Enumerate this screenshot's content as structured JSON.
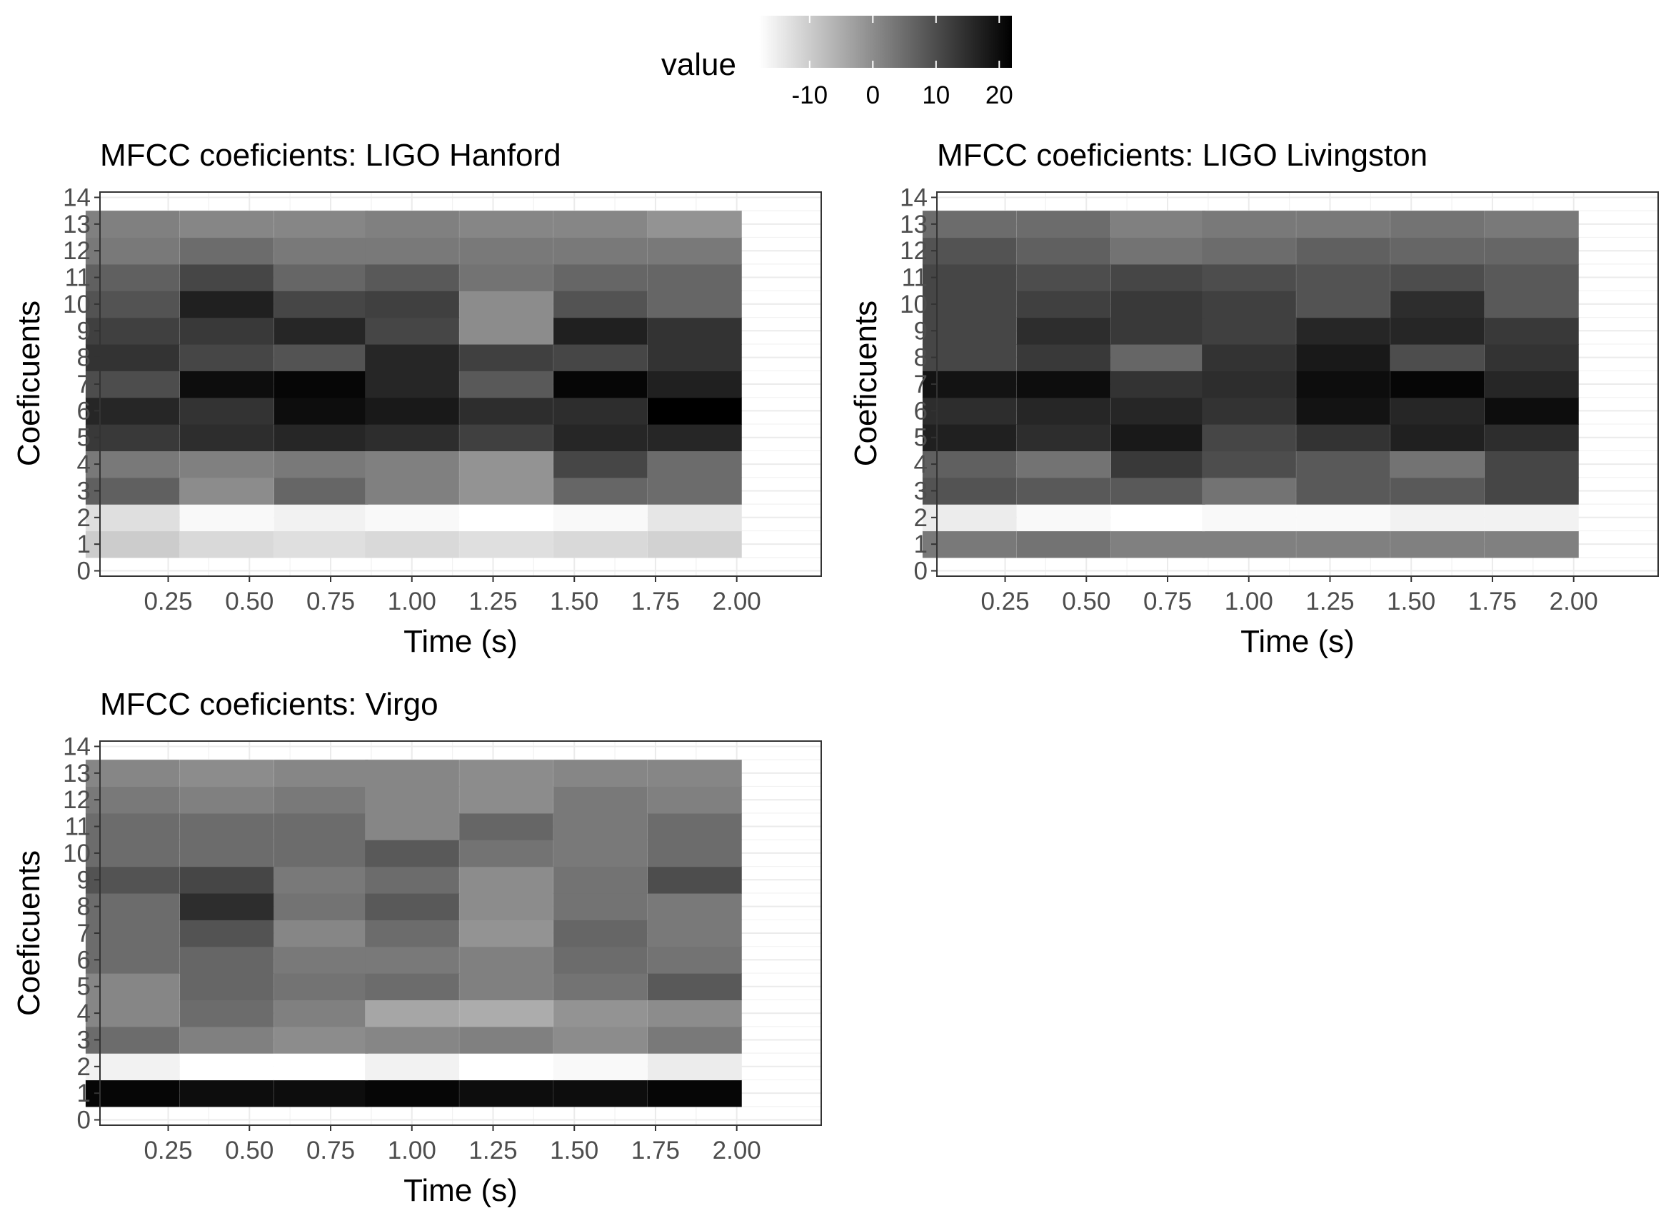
{
  "legend": {
    "title": "value",
    "ticks": [
      -10,
      0,
      10,
      20
    ],
    "tick_labels": [
      "-10",
      "0",
      "10",
      "20"
    ],
    "range": [
      -18,
      22
    ],
    "color_low": "#ffffff",
    "color_high": "#000000"
  },
  "chart_data": [
    {
      "type": "heatmap",
      "title": "MFCC coeficients: LIGO Hanford",
      "xlabel": "Time (s)",
      "ylabel": "Coeficuents",
      "x": [
        0.14,
        0.43,
        0.72,
        1.0,
        1.29,
        1.58,
        1.87
      ],
      "y": [
        1,
        2,
        3,
        4,
        5,
        6,
        7,
        8,
        9,
        10,
        11,
        12,
        13
      ],
      "xlim": [
        0.04,
        2.26
      ],
      "ylim": [
        -0.2,
        14.2
      ],
      "x_ticks": [
        "0.25",
        "0.50",
        "0.75",
        "1.00",
        "1.25",
        "1.50",
        "1.75",
        "2.00"
      ],
      "y_ticks": [
        "0",
        "1",
        "2",
        "3",
        "4",
        "5",
        "6",
        "7",
        "8",
        "9",
        "10",
        "11",
        "12",
        "13",
        "14"
      ],
      "values": [
        [
          -10,
          -12,
          -13,
          -12,
          -13,
          -12,
          -11
        ],
        [
          -13,
          -17,
          -16,
          -17,
          -18,
          -17,
          -14
        ],
        [
          7,
          0,
          6,
          2,
          -1,
          6,
          5
        ],
        [
          3,
          2,
          3,
          2,
          -1,
          11,
          5
        ],
        [
          13,
          15,
          16,
          15,
          12,
          16,
          16
        ],
        [
          16,
          14,
          20,
          18,
          15,
          15,
          22
        ],
        [
          10,
          20,
          21,
          16,
          8,
          21,
          17
        ],
        [
          14,
          11,
          9,
          16,
          12,
          11,
          14
        ],
        [
          12,
          13,
          16,
          11,
          0,
          17,
          14
        ],
        [
          9,
          17,
          11,
          12,
          0,
          9,
          6
        ],
        [
          7,
          11,
          6,
          8,
          4,
          6,
          6
        ],
        [
          3,
          5,
          3,
          3,
          3,
          3,
          3
        ],
        [
          2,
          1,
          1,
          2,
          1,
          1,
          -1
        ]
      ],
      "grid": true
    },
    {
      "type": "heatmap",
      "title": "MFCC coeficients: LIGO Livingston",
      "xlabel": "Time (s)",
      "ylabel": "Coeficuents",
      "x": [
        0.14,
        0.43,
        0.72,
        1.0,
        1.29,
        1.58,
        1.87
      ],
      "y": [
        1,
        2,
        3,
        4,
        5,
        6,
        7,
        8,
        9,
        10,
        11,
        12,
        13
      ],
      "xlim": [
        0.04,
        2.26
      ],
      "ylim": [
        -0.2,
        14.2
      ],
      "x_ticks": [
        "0.25",
        "0.50",
        "0.75",
        "1.00",
        "1.25",
        "1.50",
        "1.75",
        "2.00"
      ],
      "y_ticks": [
        "0",
        "1",
        "2",
        "3",
        "4",
        "5",
        "6",
        "7",
        "8",
        "9",
        "10",
        "11",
        "12",
        "13",
        "14"
      ],
      "values": [
        [
          3,
          4,
          2,
          2,
          2,
          2,
          2
        ],
        [
          -15,
          -17,
          -18,
          -17,
          -17,
          -16,
          -16
        ],
        [
          9,
          8,
          8,
          4,
          8,
          8,
          11
        ],
        [
          7,
          4,
          13,
          10,
          8,
          4,
          11
        ],
        [
          17,
          15,
          18,
          11,
          14,
          17,
          15
        ],
        [
          15,
          16,
          16,
          14,
          19,
          16,
          20
        ],
        [
          19,
          20,
          14,
          15,
          20,
          21,
          16
        ],
        [
          11,
          13,
          6,
          14,
          18,
          10,
          14
        ],
        [
          11,
          15,
          13,
          12,
          16,
          16,
          13
        ],
        [
          11,
          12,
          13,
          12,
          9,
          15,
          8
        ],
        [
          11,
          10,
          11,
          10,
          9,
          10,
          8
        ],
        [
          9,
          7,
          4,
          5,
          7,
          6,
          6
        ],
        [
          5,
          5,
          2,
          3,
          3,
          4,
          3
        ]
      ],
      "grid": true
    },
    {
      "type": "heatmap",
      "title": "MFCC coeficients: Virgo",
      "xlabel": "Time (s)",
      "ylabel": "Coeficuents",
      "x": [
        0.14,
        0.43,
        0.72,
        1.0,
        1.29,
        1.58,
        1.87
      ],
      "y": [
        1,
        2,
        3,
        4,
        5,
        6,
        7,
        8,
        9,
        10,
        11,
        12,
        13
      ],
      "xlim": [
        0.04,
        2.26
      ],
      "ylim": [
        -0.2,
        14.2
      ],
      "x_ticks": [
        "0.25",
        "0.50",
        "0.75",
        "1.00",
        "1.25",
        "1.50",
        "1.75",
        "2.00"
      ],
      "y_ticks": [
        "0",
        "1",
        "2",
        "3",
        "4",
        "5",
        "6",
        "7",
        "8",
        "9",
        "10",
        "11",
        "12",
        "13",
        "14"
      ],
      "values": [
        [
          21,
          20,
          20,
          21,
          20,
          20,
          21
        ],
        [
          -16,
          -18,
          -18,
          -16,
          -18,
          -17,
          -15
        ],
        [
          5,
          2,
          0,
          1,
          2,
          0,
          3
        ],
        [
          1,
          5,
          2,
          -4,
          -5,
          -1,
          0
        ],
        [
          1,
          6,
          4,
          5,
          2,
          4,
          8
        ],
        [
          5,
          6,
          3,
          3,
          2,
          5,
          4
        ],
        [
          5,
          9,
          1,
          5,
          -1,
          6,
          3
        ],
        [
          5,
          15,
          4,
          8,
          0,
          4,
          3
        ],
        [
          9,
          11,
          3,
          5,
          0,
          4,
          10
        ],
        [
          5,
          5,
          5,
          8,
          4,
          3,
          5
        ],
        [
          5,
          5,
          5,
          1,
          6,
          3,
          5
        ],
        [
          3,
          2,
          3,
          1,
          0,
          3,
          2
        ],
        [
          1,
          0,
          1,
          1,
          0,
          1,
          1
        ]
      ],
      "grid": true
    }
  ]
}
